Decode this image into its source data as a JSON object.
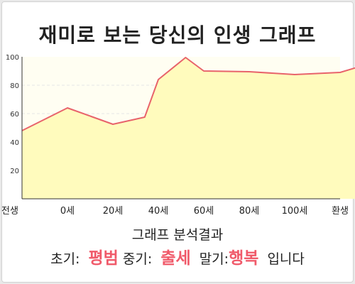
{
  "title": "재미로 보는 당신의 인생 그래프",
  "colors": {
    "plot_background": "#fffef2",
    "area_fill": "#fffbbd",
    "line": "#e8636b",
    "grid": "#e6e6e6",
    "axis": "#333333",
    "highlight": "#f05a6a"
  },
  "chart_data": {
    "type": "area",
    "x_categories": [
      "전생",
      "0세",
      "20세",
      "40세",
      "60세",
      "80세",
      "100세",
      "환생"
    ],
    "x": [
      -1,
      0,
      1,
      1.7,
      2,
      2.6,
      3,
      4,
      5,
      6,
      7
    ],
    "values": [
      48,
      64,
      52.5,
      57.5,
      84,
      99.5,
      90,
      89.5,
      87.5,
      89,
      98.5
    ],
    "y_ticks": [
      20,
      40,
      60,
      80,
      100
    ],
    "ylim": [
      0,
      100
    ],
    "grid": true,
    "xlabel": "",
    "ylabel": ""
  },
  "result": {
    "heading": "그래프 분석결과",
    "early_label": "초기:",
    "early_value": "평범",
    "mid_label": "중기:",
    "mid_value": "출세",
    "late_label": "말기:",
    "late_value": "행복",
    "suffix": "입니다"
  }
}
